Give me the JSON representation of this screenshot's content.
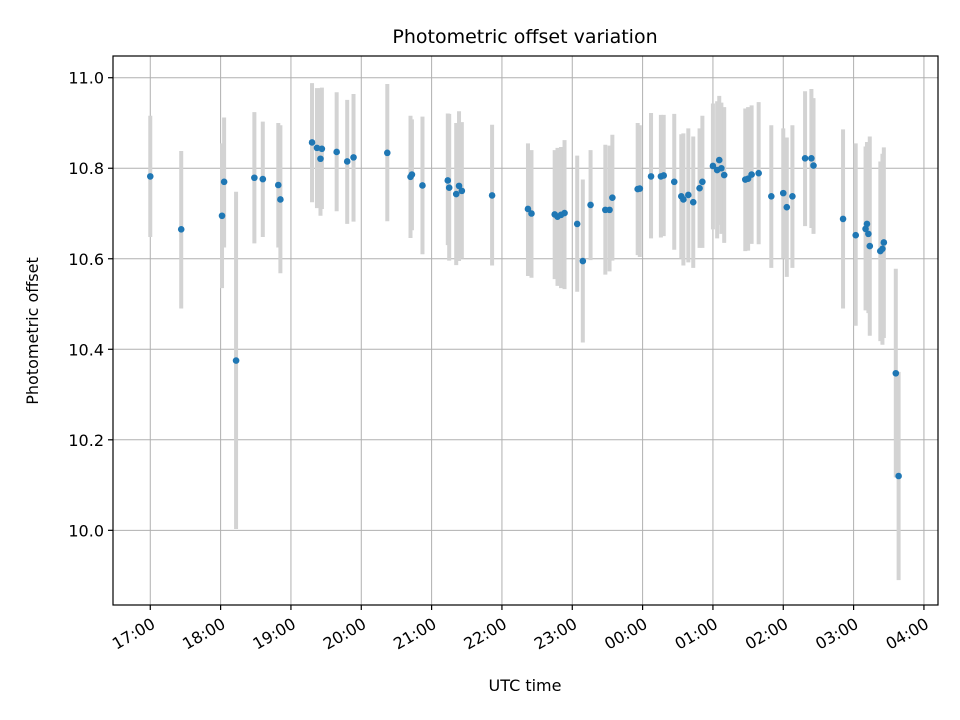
{
  "chart_data": {
    "type": "scatter",
    "title": "Photometric offset variation",
    "xlabel": "UTC time",
    "ylabel": "Photometric offset",
    "x_unit": "hours since 00:00 UTC of the first evening (values >24 are after midnight)",
    "xlim": [
      16.47,
      28.2
    ],
    "ylim": [
      9.835,
      11.048
    ],
    "x_ticks": [
      {
        "value": 17,
        "label": "17:00"
      },
      {
        "value": 18,
        "label": "18:00"
      },
      {
        "value": 19,
        "label": "19:00"
      },
      {
        "value": 20,
        "label": "20:00"
      },
      {
        "value": 21,
        "label": "21:00"
      },
      {
        "value": 22,
        "label": "22:00"
      },
      {
        "value": 23,
        "label": "23:00"
      },
      {
        "value": 24,
        "label": "00:00"
      },
      {
        "value": 25,
        "label": "01:00"
      },
      {
        "value": 26,
        "label": "02:00"
      },
      {
        "value": 27,
        "label": "03:00"
      },
      {
        "value": 28,
        "label": "04:00"
      }
    ],
    "y_ticks": [
      {
        "value": 10.0,
        "label": "10.0"
      },
      {
        "value": 10.2,
        "label": "10.2"
      },
      {
        "value": 10.4,
        "label": "10.4"
      },
      {
        "value": 10.6,
        "label": "10.6"
      },
      {
        "value": 10.8,
        "label": "10.8"
      },
      {
        "value": 11.0,
        "label": "11.0"
      }
    ],
    "grid": true,
    "marker_color": "#1f77b4",
    "errorbar_color": "#d3d3d3",
    "points": [
      {
        "x": 17.0,
        "y": 10.782,
        "lo": 10.648,
        "hi": 10.916
      },
      {
        "x": 17.44,
        "y": 10.665,
        "lo": 10.49,
        "hi": 10.838
      },
      {
        "x": 18.02,
        "y": 10.695,
        "lo": 10.535,
        "hi": 10.855
      },
      {
        "x": 18.05,
        "y": 10.77,
        "lo": 10.625,
        "hi": 10.912
      },
      {
        "x": 18.22,
        "y": 10.375,
        "lo": 10.003,
        "hi": 10.748
      },
      {
        "x": 18.48,
        "y": 10.779,
        "lo": 10.634,
        "hi": 10.924
      },
      {
        "x": 18.6,
        "y": 10.776,
        "lo": 10.648,
        "hi": 10.903
      },
      {
        "x": 18.82,
        "y": 10.763,
        "lo": 10.625,
        "hi": 10.9
      },
      {
        "x": 18.85,
        "y": 10.731,
        "lo": 10.568,
        "hi": 10.895
      },
      {
        "x": 19.3,
        "y": 10.857,
        "lo": 10.725,
        "hi": 10.988
      },
      {
        "x": 19.37,
        "y": 10.845,
        "lo": 10.712,
        "hi": 10.977
      },
      {
        "x": 19.42,
        "y": 10.821,
        "lo": 10.695,
        "hi": 10.977
      },
      {
        "x": 19.44,
        "y": 10.843,
        "lo": 10.71,
        "hi": 10.978
      },
      {
        "x": 19.65,
        "y": 10.836,
        "lo": 10.705,
        "hi": 10.968
      },
      {
        "x": 19.8,
        "y": 10.815,
        "lo": 10.677,
        "hi": 10.951
      },
      {
        "x": 19.89,
        "y": 10.824,
        "lo": 10.682,
        "hi": 10.964
      },
      {
        "x": 20.37,
        "y": 10.834,
        "lo": 10.683,
        "hi": 10.986
      },
      {
        "x": 20.7,
        "y": 10.781,
        "lo": 10.646,
        "hi": 10.916
      },
      {
        "x": 20.72,
        "y": 10.786,
        "lo": 10.663,
        "hi": 10.908
      },
      {
        "x": 20.87,
        "y": 10.762,
        "lo": 10.61,
        "hi": 10.914
      },
      {
        "x": 21.23,
        "y": 10.773,
        "lo": 10.63,
        "hi": 10.921
      },
      {
        "x": 21.25,
        "y": 10.757,
        "lo": 10.596,
        "hi": 10.92
      },
      {
        "x": 21.35,
        "y": 10.743,
        "lo": 10.586,
        "hi": 10.9
      },
      {
        "x": 21.39,
        "y": 10.761,
        "lo": 10.595,
        "hi": 10.926
      },
      {
        "x": 21.43,
        "y": 10.75,
        "lo": 10.6,
        "hi": 10.902
      },
      {
        "x": 21.86,
        "y": 10.74,
        "lo": 10.585,
        "hi": 10.896
      },
      {
        "x": 22.37,
        "y": 10.71,
        "lo": 10.562,
        "hi": 10.855
      },
      {
        "x": 22.42,
        "y": 10.7,
        "lo": 10.558,
        "hi": 10.84
      },
      {
        "x": 22.75,
        "y": 10.698,
        "lo": 10.555,
        "hi": 10.84
      },
      {
        "x": 22.79,
        "y": 10.693,
        "lo": 10.54,
        "hi": 10.845
      },
      {
        "x": 22.84,
        "y": 10.697,
        "lo": 10.535,
        "hi": 10.847
      },
      {
        "x": 22.89,
        "y": 10.701,
        "lo": 10.533,
        "hi": 10.862
      },
      {
        "x": 23.07,
        "y": 10.677,
        "lo": 10.527,
        "hi": 10.828
      },
      {
        "x": 23.15,
        "y": 10.595,
        "lo": 10.415,
        "hi": 10.775
      },
      {
        "x": 23.26,
        "y": 10.719,
        "lo": 10.597,
        "hi": 10.84
      },
      {
        "x": 23.47,
        "y": 10.708,
        "lo": 10.565,
        "hi": 10.852
      },
      {
        "x": 23.53,
        "y": 10.708,
        "lo": 10.572,
        "hi": 10.85
      },
      {
        "x": 23.57,
        "y": 10.735,
        "lo": 10.596,
        "hi": 10.874
      },
      {
        "x": 23.93,
        "y": 10.754,
        "lo": 10.608,
        "hi": 10.9
      },
      {
        "x": 23.96,
        "y": 10.755,
        "lo": 10.604,
        "hi": 10.895
      },
      {
        "x": 24.12,
        "y": 10.782,
        "lo": 10.645,
        "hi": 10.922
      },
      {
        "x": 24.26,
        "y": 10.782,
        "lo": 10.647,
        "hi": 10.918
      },
      {
        "x": 24.3,
        "y": 10.784,
        "lo": 10.65,
        "hi": 10.918
      },
      {
        "x": 24.45,
        "y": 10.77,
        "lo": 10.62,
        "hi": 10.92
      },
      {
        "x": 24.55,
        "y": 10.738,
        "lo": 10.6,
        "hi": 10.875
      },
      {
        "x": 24.58,
        "y": 10.731,
        "lo": 10.585,
        "hi": 10.877
      },
      {
        "x": 24.65,
        "y": 10.741,
        "lo": 10.592,
        "hi": 10.888
      },
      {
        "x": 24.72,
        "y": 10.725,
        "lo": 10.58,
        "hi": 10.87
      },
      {
        "x": 24.81,
        "y": 10.756,
        "lo": 10.624,
        "hi": 10.888
      },
      {
        "x": 24.85,
        "y": 10.77,
        "lo": 10.624,
        "hi": 10.916
      },
      {
        "x": 25.0,
        "y": 10.805,
        "lo": 10.665,
        "hi": 10.943
      },
      {
        "x": 25.06,
        "y": 10.796,
        "lo": 10.645,
        "hi": 10.948
      },
      {
        "x": 25.09,
        "y": 10.818,
        "lo": 10.675,
        "hi": 10.96
      },
      {
        "x": 25.12,
        "y": 10.8,
        "lo": 10.655,
        "hi": 10.945
      },
      {
        "x": 25.16,
        "y": 10.785,
        "lo": 10.635,
        "hi": 10.935
      },
      {
        "x": 25.46,
        "y": 10.775,
        "lo": 10.617,
        "hi": 10.932
      },
      {
        "x": 25.5,
        "y": 10.777,
        "lo": 10.618,
        "hi": 10.935
      },
      {
        "x": 25.55,
        "y": 10.786,
        "lo": 10.633,
        "hi": 10.939
      },
      {
        "x": 25.65,
        "y": 10.789,
        "lo": 10.632,
        "hi": 10.946
      },
      {
        "x": 25.83,
        "y": 10.738,
        "lo": 10.58,
        "hi": 10.895
      },
      {
        "x": 26.0,
        "y": 10.745,
        "lo": 10.6,
        "hi": 10.888
      },
      {
        "x": 26.05,
        "y": 10.714,
        "lo": 10.56,
        "hi": 10.868
      },
      {
        "x": 26.13,
        "y": 10.738,
        "lo": 10.58,
        "hi": 10.895
      },
      {
        "x": 26.31,
        "y": 10.822,
        "lo": 10.672,
        "hi": 10.97
      },
      {
        "x": 26.4,
        "y": 10.822,
        "lo": 10.668,
        "hi": 10.975
      },
      {
        "x": 26.43,
        "y": 10.806,
        "lo": 10.655,
        "hi": 10.955
      },
      {
        "x": 26.85,
        "y": 10.688,
        "lo": 10.49,
        "hi": 10.886
      },
      {
        "x": 27.03,
        "y": 10.652,
        "lo": 10.452,
        "hi": 10.855
      },
      {
        "x": 27.17,
        "y": 10.666,
        "lo": 10.486,
        "hi": 10.848
      },
      {
        "x": 27.19,
        "y": 10.677,
        "lo": 10.495,
        "hi": 10.858
      },
      {
        "x": 27.21,
        "y": 10.655,
        "lo": 10.48,
        "hi": 10.83
      },
      {
        "x": 27.23,
        "y": 10.628,
        "lo": 10.43,
        "hi": 10.87
      },
      {
        "x": 27.38,
        "y": 10.617,
        "lo": 10.418,
        "hi": 10.815
      },
      {
        "x": 27.41,
        "y": 10.622,
        "lo": 10.41,
        "hi": 10.832
      },
      {
        "x": 27.43,
        "y": 10.636,
        "lo": 10.425,
        "hi": 10.846
      },
      {
        "x": 27.6,
        "y": 10.347,
        "lo": 10.117,
        "hi": 10.578
      },
      {
        "x": 27.64,
        "y": 10.12,
        "lo": 9.89,
        "hi": 10.35
      }
    ]
  }
}
